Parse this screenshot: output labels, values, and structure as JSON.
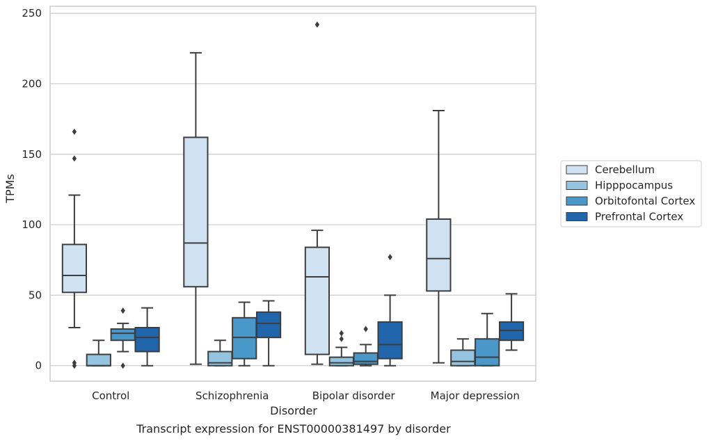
{
  "chart_data": {
    "type": "box",
    "xlabel": "Disorder",
    "ylabel": "TPMs",
    "caption": "Transcript expression for ENST00000381497 by disorder",
    "ylim": [
      -11,
      255
    ],
    "yticks": [
      0,
      50,
      100,
      150,
      200,
      250
    ],
    "grid": "horizontal",
    "legend_position": "right",
    "categories": [
      "Control",
      "Schizophrenia",
      "Bipolar disorder",
      "Major depression"
    ],
    "series": [
      {
        "name": "Cerebellum",
        "color": "#d0e1f2",
        "boxes": [
          {
            "whislo": 27,
            "q1": 52,
            "med": 64,
            "q3": 86,
            "whishi": 121,
            "fliers": [
              166,
              147,
              2,
              0
            ]
          },
          {
            "whislo": 1,
            "q1": 56,
            "med": 87,
            "q3": 162,
            "whishi": 222,
            "fliers": []
          },
          {
            "whislo": 1,
            "q1": 8,
            "med": 63,
            "q3": 84,
            "whishi": 96,
            "fliers": [
              242
            ]
          },
          {
            "whislo": 2,
            "q1": 53,
            "med": 76,
            "q3": 104,
            "whishi": 181,
            "fliers": []
          }
        ]
      },
      {
        "name": "Hipppocampus",
        "color": "#94c4df",
        "boxes": [
          {
            "whislo": 0,
            "q1": 0,
            "med": 0,
            "q3": 8,
            "whishi": 18,
            "fliers": []
          },
          {
            "whislo": 0,
            "q1": 0,
            "med": 2,
            "q3": 10,
            "whishi": 18,
            "fliers": []
          },
          {
            "whislo": 0,
            "q1": 0,
            "med": 2,
            "q3": 6,
            "whishi": 13,
            "fliers": [
              23,
              19
            ]
          },
          {
            "whislo": 0,
            "q1": 0,
            "med": 3,
            "q3": 11,
            "whishi": 19,
            "fliers": []
          }
        ]
      },
      {
        "name": "Orbitofontal Cortex",
        "color": "#4a98c9",
        "boxes": [
          {
            "whislo": 10,
            "q1": 18,
            "med": 23,
            "q3": 26,
            "whishi": 30,
            "fliers": [
              39,
              0
            ]
          },
          {
            "whislo": 0,
            "q1": 5,
            "med": 20,
            "q3": 34,
            "whishi": 45,
            "fliers": []
          },
          {
            "whislo": 0,
            "q1": 1,
            "med": 3,
            "q3": 9,
            "whishi": 15,
            "fliers": [
              26
            ]
          },
          {
            "whislo": 0,
            "q1": 0,
            "med": 6,
            "q3": 19,
            "whishi": 37,
            "fliers": []
          }
        ]
      },
      {
        "name": "Prefrontal Cortex",
        "color": "#2166ac",
        "boxes": [
          {
            "whislo": 0,
            "q1": 10,
            "med": 20,
            "q3": 27,
            "whishi": 41,
            "fliers": []
          },
          {
            "whislo": 0,
            "q1": 20,
            "med": 30,
            "q3": 38,
            "whishi": 46,
            "fliers": []
          },
          {
            "whislo": 0,
            "q1": 5,
            "med": 15,
            "q3": 31,
            "whishi": 50,
            "fliers": [
              77
            ]
          },
          {
            "whislo": 11,
            "q1": 18,
            "med": 25,
            "q3": 31,
            "whishi": 51,
            "fliers": []
          }
        ]
      }
    ]
  }
}
